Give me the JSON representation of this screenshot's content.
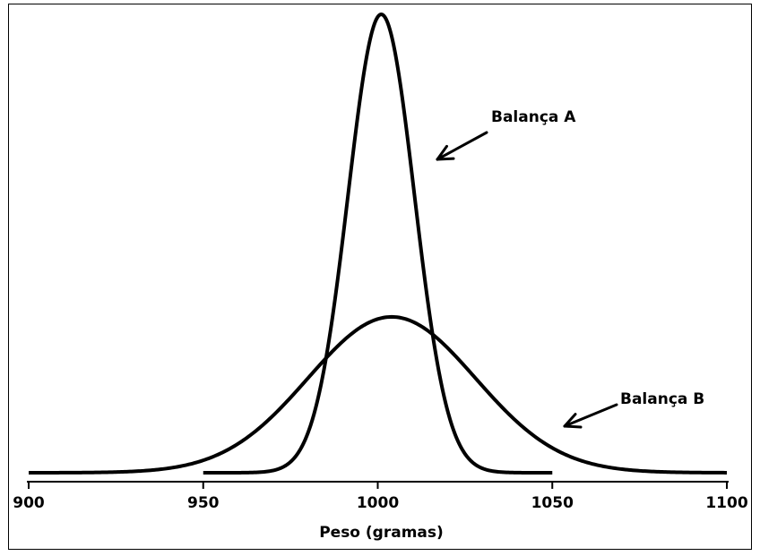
{
  "chart_data": {
    "type": "line",
    "title": "",
    "xlabel": "Peso (gramas)",
    "ylabel": "",
    "xlim": [
      900,
      1100
    ],
    "xticks": [
      "900",
      "950",
      "1000",
      "1050",
      "1100"
    ],
    "grid": false,
    "legend": "none",
    "series": [
      {
        "name": "Balança A",
        "distribution": "normal",
        "mean": 1001,
        "sd": 9.5,
        "x_range": [
          950,
          1050
        ],
        "relative_peak": 1.0
      },
      {
        "name": "Balança B",
        "distribution": "normal",
        "mean": 1004,
        "sd": 24,
        "x_range": [
          900,
          1100
        ],
        "relative_peak": 0.34
      }
    ],
    "annotations": [
      {
        "text": "Balança A",
        "points_to": "Balança A",
        "at_x": 1015
      },
      {
        "text": "Balança B",
        "points_to": "Balança B",
        "at_x": 1050
      }
    ],
    "colors": {
      "line": "#000000",
      "background": "#ffffff"
    }
  }
}
